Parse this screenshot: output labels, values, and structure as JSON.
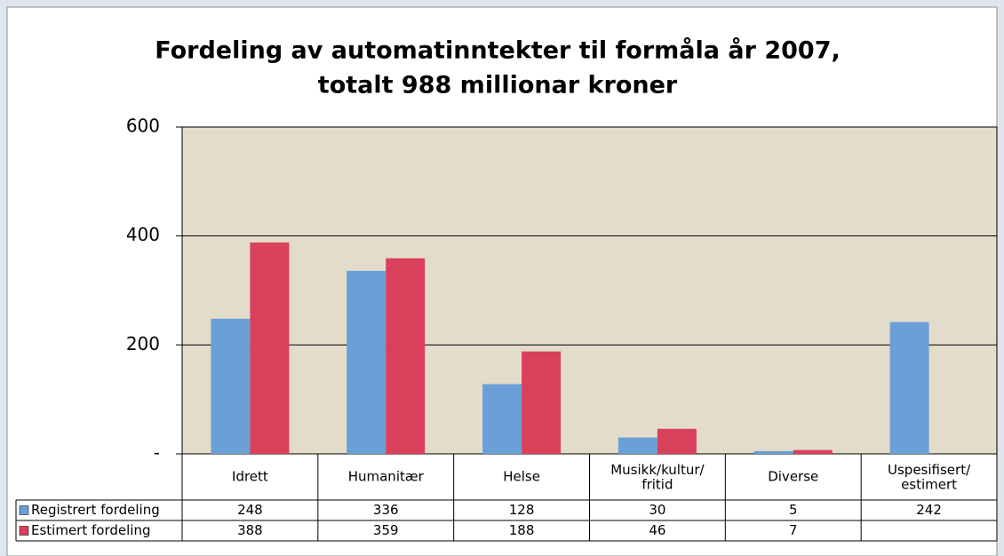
{
  "chart_data": {
    "type": "bar",
    "title": [
      "Fordeling av automatinntekter til formåla år 2007,",
      "totalt 988 millionar kroner"
    ],
    "categories": [
      "Idrett",
      "Humanitær",
      "Helse",
      "Musikk/kultur/\nfritid",
      "Diverse",
      "Uspesifisert/\nestimert"
    ],
    "series": [
      {
        "name": "Registrert fordeling",
        "color": "#6a9fd8",
        "values": [
          248,
          336,
          128,
          30,
          5,
          242
        ]
      },
      {
        "name": "Estimert fordeling",
        "color": "#d9405a",
        "values": [
          388,
          359,
          188,
          46,
          7,
          null
        ]
      }
    ],
    "ylim": [
      0,
      600
    ],
    "yticks": [
      {
        "value": 0,
        "label": "-"
      },
      200,
      400,
      600
    ],
    "grid": true,
    "plot_background": "#e3dccb"
  }
}
